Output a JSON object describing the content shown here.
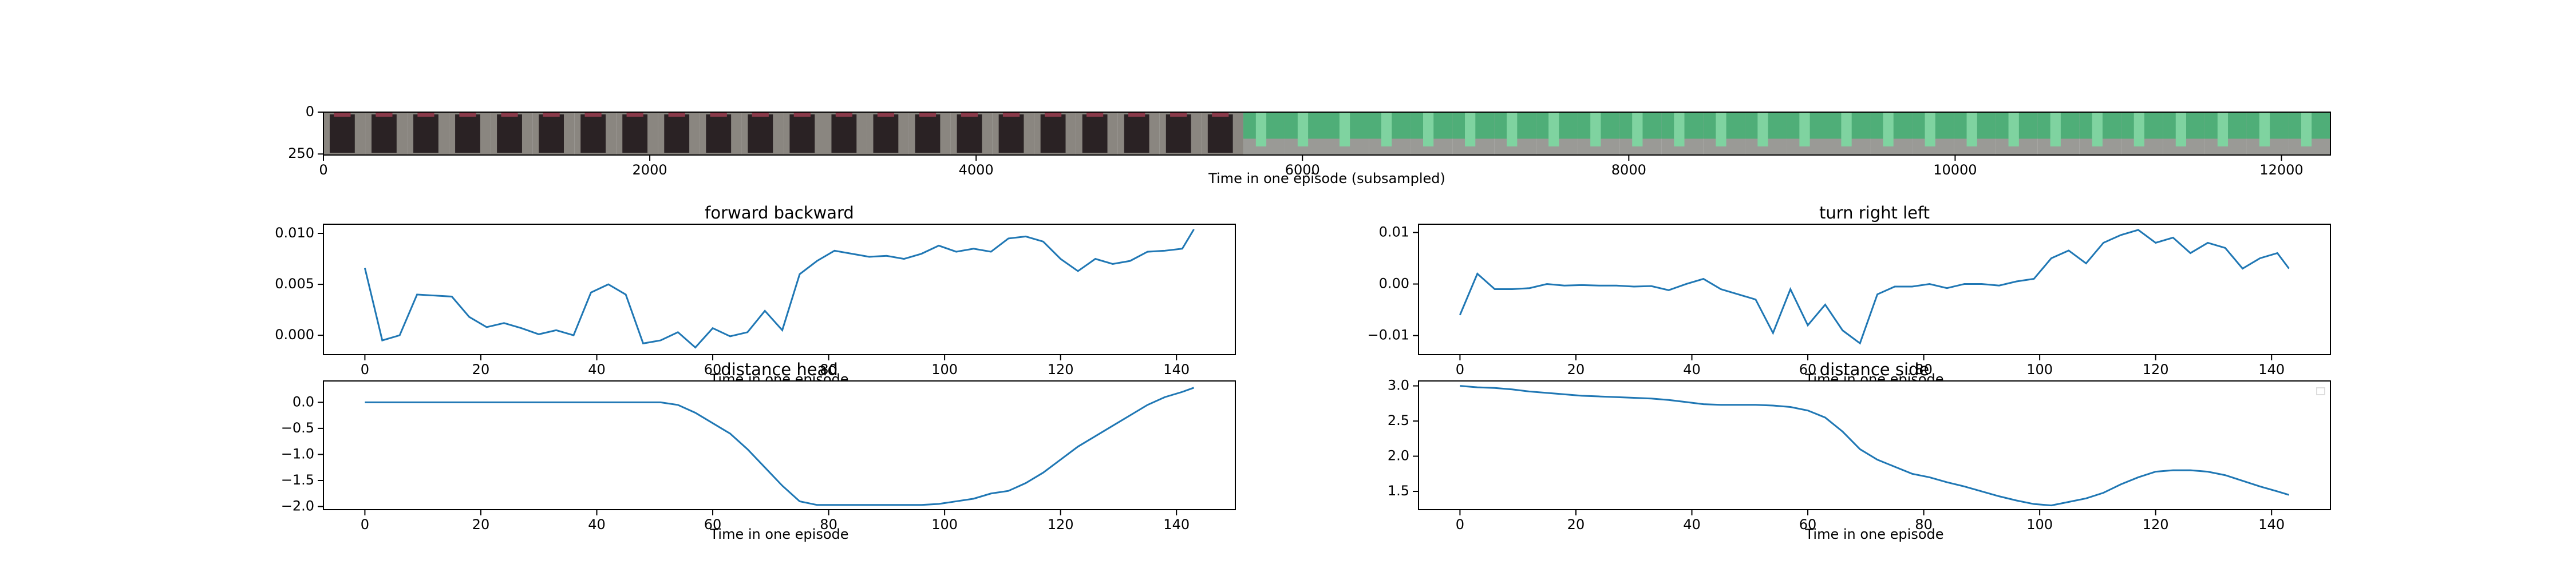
{
  "chart_data": [
    {
      "type": "image",
      "xlabel": "Time in one episode (subsampled)",
      "xlim": [
        0,
        12300
      ],
      "xticks": [
        0,
        2000,
        4000,
        6000,
        8000,
        10000,
        12000
      ],
      "ylim": [
        256,
        0
      ],
      "yticks": [
        0,
        250
      ]
    },
    {
      "type": "line",
      "title": "forward backward",
      "xlabel": "Time in one episode",
      "color": "#1f77b4",
      "x": [
        0,
        3,
        6,
        9,
        12,
        15,
        18,
        21,
        24,
        27,
        30,
        33,
        36,
        39,
        42,
        45,
        48,
        51,
        54,
        57,
        60,
        63,
        66,
        69,
        72,
        75,
        78,
        81,
        84,
        87,
        90,
        93,
        96,
        99,
        102,
        105,
        108,
        111,
        114,
        117,
        120,
        123,
        126,
        129,
        132,
        135,
        138,
        141,
        143
      ],
      "values": [
        0.0066,
        -0.0005,
        0.0,
        0.004,
        0.0039,
        0.0038,
        0.0018,
        0.0008,
        0.0012,
        0.0007,
        0.0001,
        0.0005,
        0.0,
        0.0042,
        0.005,
        0.004,
        -0.0008,
        -0.0005,
        0.0003,
        -0.0012,
        0.0007,
        -0.0001,
        0.0003,
        0.0024,
        0.0005,
        0.006,
        0.0073,
        0.0083,
        0.008,
        0.0077,
        0.0078,
        0.0075,
        0.008,
        0.0088,
        0.0082,
        0.0085,
        0.0082,
        0.0095,
        0.0097,
        0.0092,
        0.0075,
        0.0063,
        0.0075,
        0.007,
        0.0073,
        0.0082,
        0.0083,
        0.0085,
        0.0104
      ],
      "xlim": [
        -7.15,
        150.15
      ],
      "xticks": [
        0,
        20,
        40,
        60,
        80,
        100,
        120,
        140
      ],
      "ylim": [
        -0.0019,
        0.0109
      ],
      "yticks": [
        {
          "value": 0,
          "label": "0.000"
        },
        {
          "value": 0.005,
          "label": "0.005"
        },
        {
          "value": 0.01,
          "label": "0.010"
        }
      ]
    },
    {
      "type": "line",
      "title": "turn right left",
      "xlabel": "Time in one episode",
      "color": "#1f77b4",
      "x": [
        0,
        3,
        6,
        9,
        12,
        15,
        18,
        21,
        24,
        27,
        30,
        33,
        36,
        39,
        42,
        45,
        48,
        51,
        54,
        57,
        60,
        63,
        66,
        69,
        72,
        75,
        78,
        81,
        84,
        87,
        90,
        93,
        96,
        99,
        102,
        105,
        108,
        111,
        114,
        117,
        120,
        123,
        126,
        129,
        132,
        135,
        138,
        141,
        143
      ],
      "values": [
        -0.006,
        0.002,
        -0.001,
        -0.001,
        -0.0008,
        0.0,
        -0.0003,
        -0.0002,
        -0.0003,
        -0.0003,
        -0.0005,
        -0.0004,
        -0.0012,
        0.0,
        0.001,
        -0.001,
        -0.002,
        -0.003,
        -0.0095,
        -0.001,
        -0.008,
        -0.004,
        -0.009,
        -0.0115,
        -0.002,
        -0.0005,
        -0.0005,
        0.0,
        -0.0008,
        0.0,
        0.0,
        -0.0003,
        0.0005,
        0.001,
        0.005,
        0.0065,
        0.004,
        0.008,
        0.0095,
        0.0105,
        0.008,
        0.009,
        0.006,
        0.008,
        0.007,
        0.003,
        0.005,
        0.006,
        0.003
      ],
      "xlim": [
        -7.15,
        150.15
      ],
      "xticks": [
        0,
        20,
        40,
        60,
        80,
        100,
        120,
        140
      ],
      "ylim": [
        -0.0137,
        0.0116
      ],
      "yticks": [
        {
          "value": -0.01,
          "label": "−0.01"
        },
        {
          "value": 0,
          "label": "0.00"
        },
        {
          "value": 0.01,
          "label": "0.01"
        }
      ]
    },
    {
      "type": "line",
      "title": "distance head",
      "xlabel": "Time in one episode",
      "color": "#1f77b4",
      "x": [
        0,
        3,
        6,
        9,
        12,
        15,
        18,
        21,
        24,
        27,
        30,
        33,
        36,
        39,
        42,
        45,
        48,
        51,
        54,
        57,
        60,
        63,
        66,
        69,
        72,
        75,
        78,
        81,
        84,
        87,
        90,
        93,
        96,
        99,
        102,
        105,
        108,
        111,
        114,
        117,
        120,
        123,
        126,
        129,
        132,
        135,
        138,
        141,
        143
      ],
      "values": [
        0,
        0,
        0,
        0,
        0,
        0,
        0,
        0,
        0,
        0,
        0,
        0,
        0,
        0,
        0,
        0,
        0,
        0,
        -0.05,
        -0.2,
        -0.4,
        -0.6,
        -0.9,
        -1.25,
        -1.6,
        -1.9,
        -1.97,
        -1.97,
        -1.97,
        -1.97,
        -1.97,
        -1.97,
        -1.97,
        -1.95,
        -1.9,
        -1.85,
        -1.75,
        -1.7,
        -1.55,
        -1.35,
        -1.1,
        -0.85,
        -0.65,
        -0.45,
        -0.25,
        -0.05,
        0.1,
        0.2,
        0.28
      ],
      "xlim": [
        -7.15,
        150.15
      ],
      "xticks": [
        0,
        20,
        40,
        60,
        80,
        100,
        120,
        140
      ],
      "ylim": [
        -2.06,
        0.41
      ],
      "yticks": [
        {
          "value": 0,
          "label": "0.0"
        },
        {
          "value": -0.5,
          "label": "−0.5"
        },
        {
          "value": -1,
          "label": "−1.0"
        },
        {
          "value": -1.5,
          "label": "−1.5"
        },
        {
          "value": -2,
          "label": "−2.0"
        }
      ]
    },
    {
      "type": "line",
      "title": "distance side",
      "xlabel": "Time in one episode",
      "color": "#1f77b4",
      "x": [
        0,
        3,
        6,
        9,
        12,
        15,
        18,
        21,
        24,
        27,
        30,
        33,
        36,
        39,
        42,
        45,
        48,
        51,
        54,
        57,
        60,
        63,
        66,
        69,
        72,
        75,
        78,
        81,
        84,
        87,
        90,
        93,
        96,
        99,
        102,
        105,
        108,
        111,
        114,
        117,
        120,
        123,
        126,
        129,
        132,
        135,
        138,
        141,
        143
      ],
      "values": [
        3.0,
        2.98,
        2.97,
        2.95,
        2.92,
        2.9,
        2.88,
        2.86,
        2.85,
        2.84,
        2.83,
        2.82,
        2.8,
        2.77,
        2.74,
        2.73,
        2.73,
        2.73,
        2.72,
        2.7,
        2.65,
        2.55,
        2.35,
        2.1,
        1.95,
        1.85,
        1.75,
        1.7,
        1.63,
        1.57,
        1.5,
        1.43,
        1.37,
        1.32,
        1.3,
        1.35,
        1.4,
        1.48,
        1.6,
        1.7,
        1.78,
        1.8,
        1.8,
        1.78,
        1.73,
        1.65,
        1.57,
        1.5,
        1.45
      ],
      "xlim": [
        -7.15,
        150.15
      ],
      "xticks": [
        0,
        20,
        40,
        60,
        80,
        100,
        120,
        140
      ],
      "ylim": [
        1.24,
        3.07
      ],
      "yticks": [
        {
          "value": 1.5,
          "label": "1.5"
        },
        {
          "value": 2,
          "label": "2.0"
        },
        {
          "value": 2.5,
          "label": "2.5"
        },
        {
          "value": 3,
          "label": "3.0"
        }
      ]
    }
  ]
}
